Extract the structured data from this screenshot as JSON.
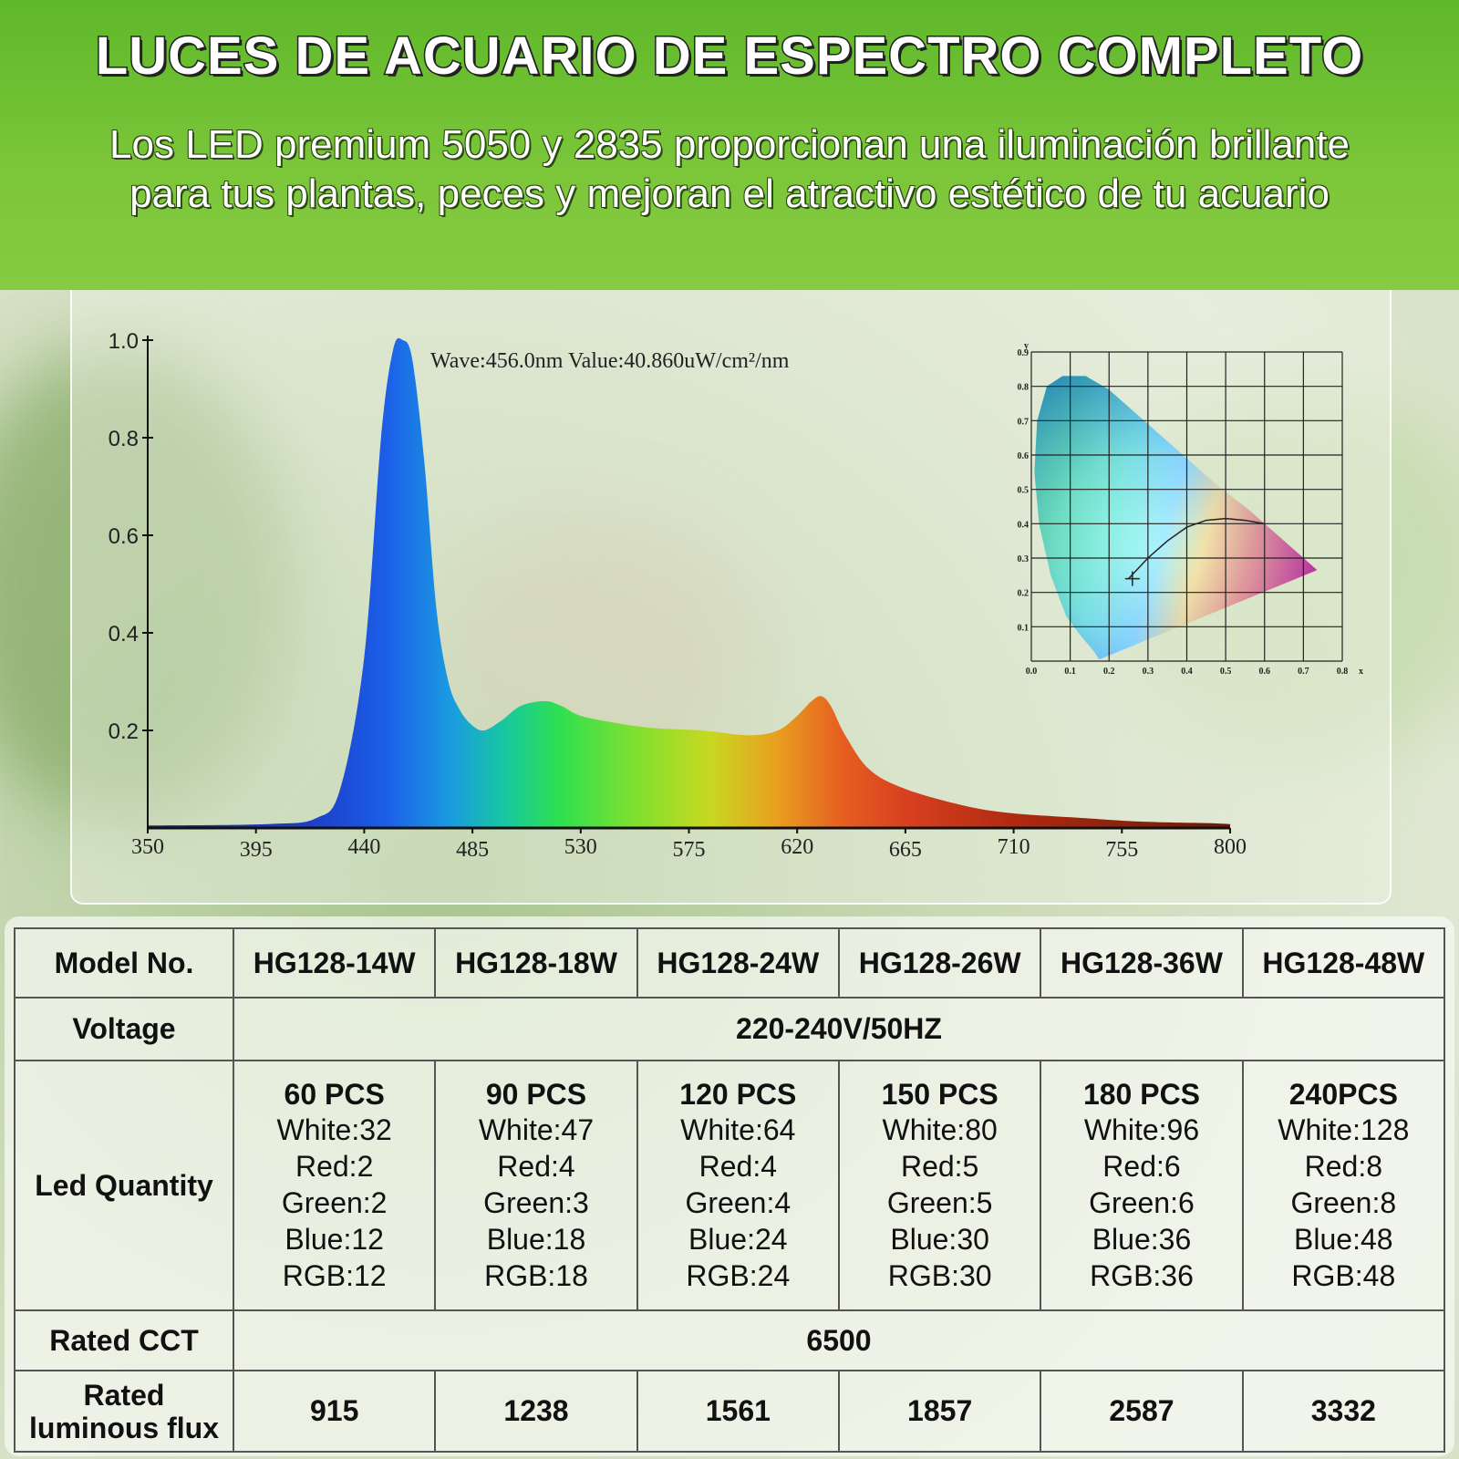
{
  "header": {
    "title": "LUCES DE ACUARIO DE ESPECTRO COMPLETO",
    "subtitle_line1": "Los LED premium 5050 y 2835 proporcionan una iluminación brillante",
    "subtitle_line2": "para tus plantas, peces y mejoran el atractivo estético de tu acuario"
  },
  "chart_data": [
    {
      "type": "area",
      "title": "",
      "annotation": "Wave:456.0nm   Value:40.860uW/cm²/nm",
      "xlabel": "",
      "ylabel": "",
      "xlim": [
        350,
        800
      ],
      "ylim": [
        0,
        1.0
      ],
      "x_ticks": [
        "350",
        "395",
        "440",
        "485",
        "530",
        "575",
        "620",
        "665",
        "710",
        "755",
        "800"
      ],
      "y_ticks": [
        "1.0",
        "0.8",
        "0.6",
        "0.4",
        "0.2"
      ],
      "grid": false,
      "x": [
        350,
        400,
        420,
        430,
        440,
        447,
        452,
        456,
        460,
        465,
        470,
        475,
        480,
        485,
        490,
        497,
        505,
        515,
        522,
        530,
        545,
        560,
        580,
        600,
        612,
        620,
        626,
        630,
        634,
        640,
        650,
        665,
        690,
        710,
        740,
        755,
        770,
        790,
        800
      ],
      "y": [
        0.005,
        0.008,
        0.02,
        0.08,
        0.35,
        0.8,
        0.98,
        1.0,
        0.96,
        0.75,
        0.45,
        0.3,
        0.24,
        0.21,
        0.2,
        0.22,
        0.25,
        0.26,
        0.25,
        0.23,
        0.215,
        0.205,
        0.2,
        0.19,
        0.2,
        0.23,
        0.26,
        0.27,
        0.25,
        0.19,
        0.12,
        0.08,
        0.045,
        0.03,
        0.02,
        0.015,
        0.012,
        0.01,
        0.008
      ]
    },
    {
      "type": "scatter",
      "title": "",
      "xlabel": "x",
      "ylabel": "y",
      "xlim": [
        0,
        0.8
      ],
      "ylim": [
        0,
        0.9
      ],
      "x_ticks": [
        "0.0",
        "0.1",
        "0.2",
        "0.3",
        "0.4",
        "0.5",
        "0.6",
        "0.7",
        "0.8"
      ],
      "y_ticks": [
        "0.1",
        "0.2",
        "0.3",
        "0.4",
        "0.5",
        "0.6",
        "0.7",
        "0.8",
        "0.9"
      ],
      "grid": true,
      "gamut_x": [
        0.175,
        0.16,
        0.13,
        0.09,
        0.05,
        0.02,
        0.008,
        0.015,
        0.04,
        0.08,
        0.14,
        0.2,
        0.26,
        0.33,
        0.4,
        0.48,
        0.56,
        0.64,
        0.735
      ],
      "gamut_y": [
        0.005,
        0.03,
        0.07,
        0.13,
        0.25,
        0.4,
        0.55,
        0.7,
        0.8,
        0.83,
        0.83,
        0.79,
        0.73,
        0.66,
        0.59,
        0.51,
        0.44,
        0.36,
        0.265
      ],
      "locus_x": [
        0.25,
        0.3,
        0.35,
        0.4,
        0.45,
        0.5,
        0.55,
        0.6
      ],
      "locus_y": [
        0.24,
        0.3,
        0.35,
        0.39,
        0.41,
        0.415,
        0.41,
        0.4
      ],
      "point": {
        "x": 0.26,
        "y": 0.24
      }
    }
  ],
  "table": {
    "model_label": "Model No.",
    "models": [
      "HG128-14W",
      "HG128-18W",
      "HG128-24W",
      "HG128-26W",
      "HG128-36W",
      "HG128-48W"
    ],
    "voltage_label": "Voltage",
    "voltage_value": "220-240V/50HZ",
    "led_label": "Led Quantity",
    "leds": [
      {
        "total": "60 PCS",
        "white": "White:32",
        "red": "Red:2",
        "green": "Green:2",
        "blue": "Blue:12",
        "rgb": "RGB:12"
      },
      {
        "total": "90 PCS",
        "white": "White:47",
        "red": "Red:4",
        "green": "Green:3",
        "blue": "Blue:18",
        "rgb": "RGB:18"
      },
      {
        "total": "120 PCS",
        "white": "White:64",
        "red": "Red:4",
        "green": "Green:4",
        "blue": "Blue:24",
        "rgb": "RGB:24"
      },
      {
        "total": "150 PCS",
        "white": "White:80",
        "red": "Red:5",
        "green": "Green:5",
        "blue": "Blue:30",
        "rgb": "RGB:30"
      },
      {
        "total": "180 PCS",
        "white": "White:96",
        "red": "Red:6",
        "green": "Green:6",
        "blue": "Blue:36",
        "rgb": "RGB:36"
      },
      {
        "total": "240PCS",
        "white": "White:128",
        "red": "Red:8",
        "green": "Green:8",
        "blue": "Blue:48",
        "rgb": "RGB:48"
      }
    ],
    "cct_label": "Rated CCT",
    "cct_value": "6500",
    "flux_label_line1": "Rated",
    "flux_label_line2": "luminous flux",
    "flux": [
      "915",
      "1238",
      "1561",
      "1857",
      "2587",
      "3332"
    ]
  }
}
